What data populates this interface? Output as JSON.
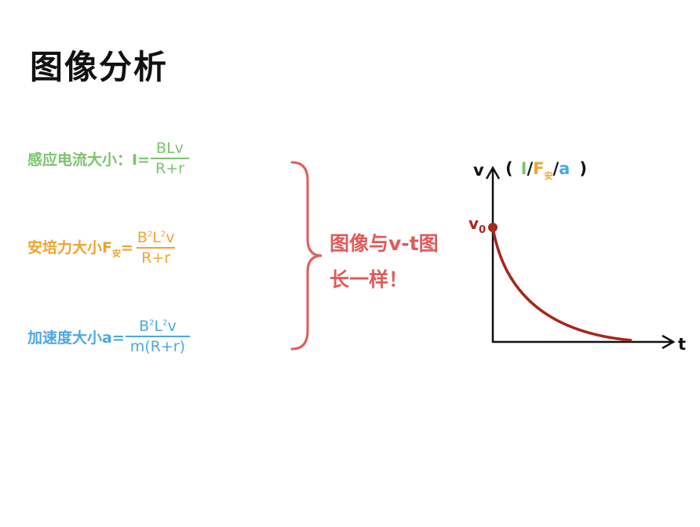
{
  "title": "图像分析",
  "formulas": [
    {
      "label": "感应电流大小：I=",
      "numerator": "BLv",
      "denominator": "R+r",
      "color": "#7cc46c"
    },
    {
      "label": "安培力大小F",
      "label_sub": "安",
      "label_end": "=",
      "numerator_parts": [
        "B",
        "2",
        "L",
        "2",
        "v"
      ],
      "denominator": "R+r",
      "color": "#f0a32e"
    },
    {
      "label": "加速度大小a=",
      "numerator_parts": [
        "B",
        "2",
        "L",
        "2",
        "v"
      ],
      "denominator": "m(R+r)",
      "color": "#4ba8e2"
    }
  ],
  "conclusion": {
    "line1": "图像与v-t图",
    "line2": "长一样！",
    "color": "#e25a5a"
  },
  "graph": {
    "y_label": "v",
    "y_label_paren_open": "(",
    "y_alt_I": "I",
    "slash1": "/",
    "y_alt_F": "F",
    "y_alt_F_sub": "安",
    "slash2": "/",
    "y_alt_a": "a",
    "y_label_paren_close": ")",
    "x_label": "t",
    "v0_label": "v",
    "v0_sub": "0",
    "curve_color": "#a8261a"
  }
}
